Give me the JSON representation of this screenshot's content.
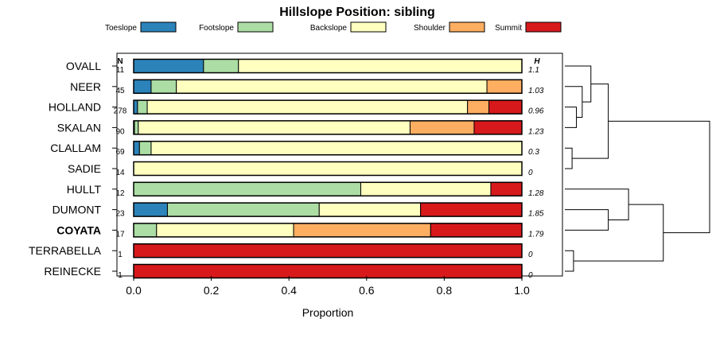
{
  "chart_data": {
    "type": "bar",
    "stacked": true,
    "orientation": "horizontal",
    "title": "Hillslope Position: sibling",
    "xlabel": "Proportion",
    "xlim": [
      0,
      1
    ],
    "x_ticks": [
      "0.0",
      "0.2",
      "0.4",
      "0.6",
      "0.8",
      "1.0"
    ],
    "x_tick_values": [
      0,
      0.2,
      0.4,
      0.6,
      0.8,
      1.0
    ],
    "n_header": "N",
    "h_header": "H",
    "legend_position": "top",
    "legend": [
      {
        "name": "Toeslope",
        "color": "#2b83ba"
      },
      {
        "name": "Footslope",
        "color": "#abdda4"
      },
      {
        "name": "Backslope",
        "color": "#ffffbf"
      },
      {
        "name": "Shoulder",
        "color": "#fdae61"
      },
      {
        "name": "Summit",
        "color": "#d7191c"
      }
    ],
    "categories": [
      {
        "label": "OVALL",
        "n": "11",
        "h": "1.1",
        "bold": false,
        "values": [
          0.18,
          0.09,
          0.73,
          0,
          0
        ]
      },
      {
        "label": "NEER",
        "n": "45",
        "h": "1.03",
        "bold": false,
        "values": [
          0.045,
          0.065,
          0.8,
          0.09,
          0
        ]
      },
      {
        "label": "HOLLAND",
        "n": "278",
        "h": "0.96",
        "bold": false,
        "values": [
          0.01,
          0.025,
          0.825,
          0.055,
          0.085
        ]
      },
      {
        "label": "SKALAN",
        "n": "90",
        "h": "1.23",
        "bold": false,
        "values": [
          0.002,
          0.01,
          0.7,
          0.165,
          0.123
        ]
      },
      {
        "label": "CLALLAM",
        "n": "69",
        "h": "0.3",
        "bold": false,
        "values": [
          0.015,
          0.03,
          0.955,
          0,
          0
        ]
      },
      {
        "label": "SADIE",
        "n": "14",
        "h": "0",
        "bold": false,
        "values": [
          0,
          0,
          1.0,
          0,
          0
        ]
      },
      {
        "label": "HULLT",
        "n": "12",
        "h": "1.28",
        "bold": false,
        "values": [
          0,
          0.585,
          0.335,
          0,
          0.08
        ]
      },
      {
        "label": "DUMONT",
        "n": "23",
        "h": "1.85",
        "bold": false,
        "values": [
          0.087,
          0.391,
          0.261,
          0,
          0.261
        ]
      },
      {
        "label": "COYATA",
        "n": "17",
        "h": "1.79",
        "bold": true,
        "values": [
          0,
          0.059,
          0.353,
          0.353,
          0.235
        ]
      },
      {
        "label": "TERRABELLA",
        "n": "1",
        "h": "0",
        "bold": false,
        "values": [
          0,
          0,
          0,
          0,
          1.0
        ]
      },
      {
        "label": "REINECKE",
        "n": "1",
        "h": "0",
        "bold": false,
        "values": [
          0,
          0,
          0,
          0,
          1.0
        ]
      }
    ],
    "dendrogram": {
      "leaf_order": [
        "OVALL",
        "NEER",
        "HOLLAND",
        "SKALAN",
        "CLALLAM",
        "SADIE",
        "HULLT",
        "DUMONT",
        "COYATA",
        "TERRABELLA",
        "REINECKE"
      ],
      "merges": [
        {
          "left": "HOLLAND",
          "right": "SKALAN",
          "height": 0.08
        },
        {
          "left": "NEER",
          "right": "HOLLAND+SKALAN",
          "height": 0.12
        },
        {
          "left": "OVALL",
          "right": "NEER+HOLLAND+SKALAN",
          "height": 0.18
        },
        {
          "left": "CLALLAM",
          "right": "SADIE",
          "height": 0.05
        },
        {
          "left": "OVALL+NEER+HOLLAND+SKALAN",
          "right": "CLALLAM+SADIE",
          "height": 0.3
        },
        {
          "left": "DUMONT",
          "right": "COYATA",
          "height": 0.3
        },
        {
          "left": "HULLT",
          "right": "DUMONT+COYATA",
          "height": 0.44
        },
        {
          "left": "TERRABELLA",
          "right": "REINECKE",
          "height": 0.06
        },
        {
          "left": "HULLT+DUMONT+COYATA",
          "right": "TERRABELLA+REINECKE",
          "height": 0.68
        },
        {
          "left": "upper",
          "right": "lower",
          "height": 1.0
        }
      ]
    }
  }
}
